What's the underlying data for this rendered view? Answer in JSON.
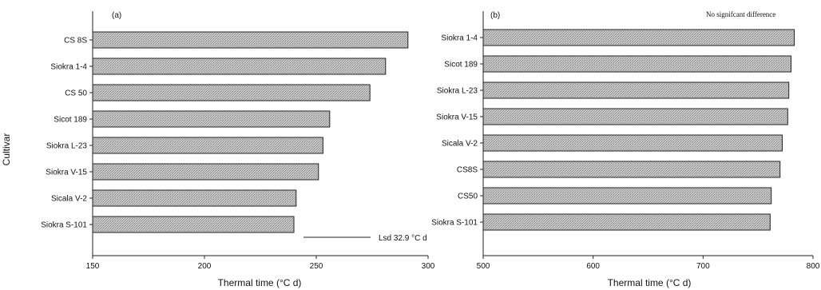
{
  "chart_data": [
    {
      "type": "bar",
      "orientation": "horizontal",
      "panel_label": "(a)",
      "ylabel": "Cultivar",
      "xlabel": "Thermal time (°C d)",
      "xlim": [
        150,
        300
      ],
      "xticks": [
        150,
        200,
        250,
        300
      ],
      "categories": [
        "CS 8S",
        "Siokra 1-4",
        "CS 50",
        "Sicot 189",
        "Siokra L-23",
        "Siokra V-15",
        "Sicala V-2",
        "Siokra S-101"
      ],
      "values": [
        291,
        281,
        274,
        256,
        253,
        251,
        241,
        240
      ],
      "annotation": "Lsd 32.9 °C d",
      "lsd_value": 32.9,
      "grid": false
    },
    {
      "type": "bar",
      "orientation": "horizontal",
      "panel_label": "(b)",
      "ylabel": "",
      "xlabel": "Thermal time (°C d)",
      "xlim": [
        500,
        800
      ],
      "xticks": [
        500,
        600,
        700,
        800
      ],
      "categories": [
        "Siokra 1-4",
        "Sicot 189",
        "Siokra L-23",
        "Siokra V-15",
        "Sicala V-2",
        "CS8S",
        "CS50",
        "Siokra S-101"
      ],
      "values": [
        783,
        780,
        778,
        777,
        772,
        770,
        762,
        761
      ],
      "annotation": "No signifcant difference",
      "grid": false
    }
  ],
  "colors": {
    "bar_fill": "#b4b4b4",
    "bar_stroke": "#222222",
    "axis": "#222222"
  }
}
